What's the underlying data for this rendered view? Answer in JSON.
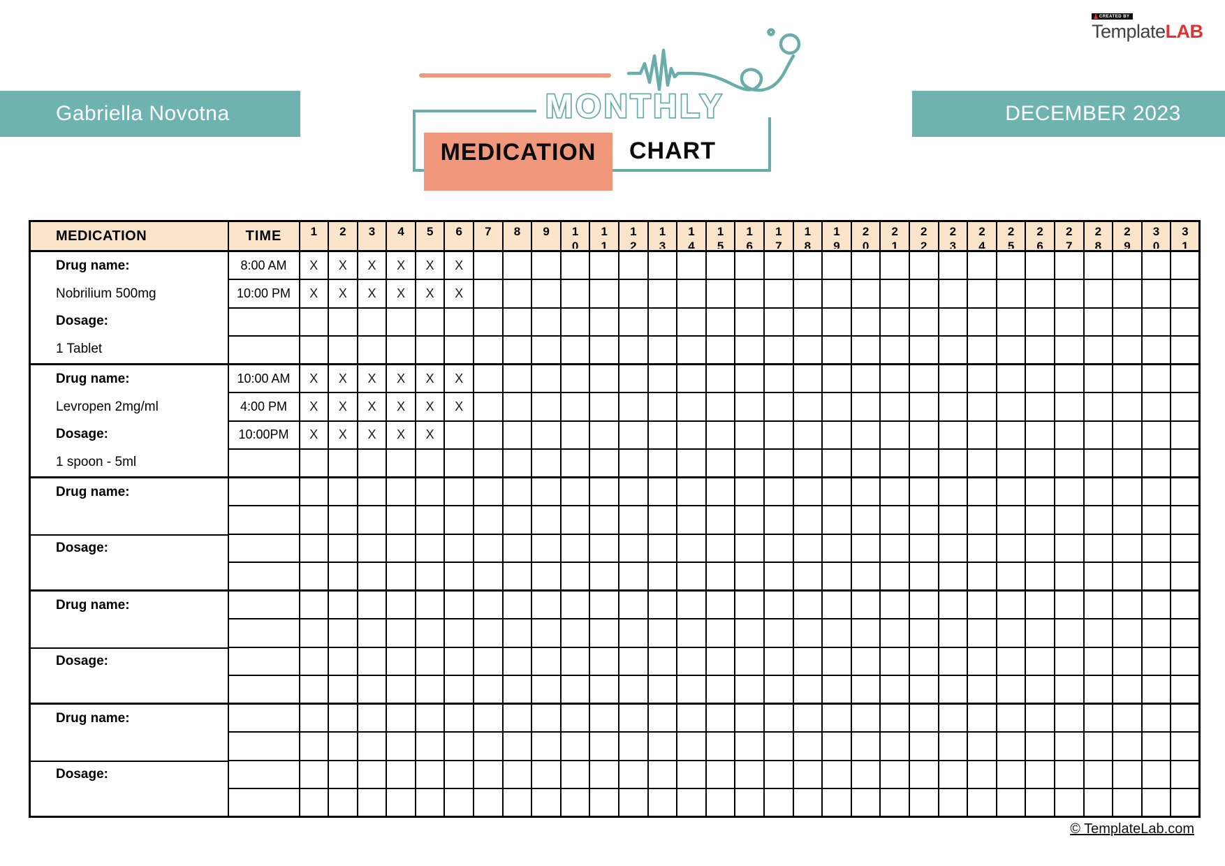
{
  "brand": {
    "created_by": "CREATED BY",
    "name_primary": "Template",
    "name_accent": "LAB"
  },
  "patient_banner": {
    "name": "Gabriella Novotna"
  },
  "month_banner": {
    "label": "DECEMBER 2023"
  },
  "logo": {
    "title": "MONTHLY",
    "subtitle_left": "MEDICATION",
    "subtitle_right": "CHART"
  },
  "table": {
    "medication_header": "MEDICATION",
    "time_header": "TIME",
    "days": [
      "1",
      "2",
      "3",
      "4",
      "5",
      "6",
      "7",
      "8",
      "9",
      "10",
      "11",
      "12",
      "13",
      "14",
      "15",
      "16",
      "17",
      "18",
      "19",
      "20",
      "21",
      "22",
      "23",
      "24",
      "25",
      "26",
      "27",
      "28",
      "29",
      "30",
      "31"
    ],
    "mark": "X",
    "groups": [
      {
        "mid_divider": false,
        "med_lines": [
          {
            "text": "Drug name:",
            "bold": true
          },
          {
            "text": "Nobrilium 500mg",
            "bold": false
          },
          {
            "text": "Dosage:",
            "bold": true
          },
          {
            "text": "1 Tablet",
            "bold": false
          }
        ],
        "time_rows": [
          {
            "time": "8:00 AM",
            "marked_days": [
              1,
              2,
              3,
              4,
              5,
              6
            ]
          },
          {
            "time": "10:00 PM",
            "marked_days": [
              1,
              2,
              3,
              4,
              5,
              6
            ]
          },
          {
            "time": "",
            "marked_days": []
          },
          {
            "time": "",
            "marked_days": []
          }
        ]
      },
      {
        "mid_divider": false,
        "med_lines": [
          {
            "text": "Drug name:",
            "bold": true
          },
          {
            "text": "Levropen 2mg/ml",
            "bold": false
          },
          {
            "text": "Dosage:",
            "bold": true
          },
          {
            "text": "1 spoon - 5ml",
            "bold": false
          }
        ],
        "time_rows": [
          {
            "time": "10:00 AM",
            "marked_days": [
              1,
              2,
              3,
              4,
              5,
              6
            ]
          },
          {
            "time": "4:00 PM",
            "marked_days": [
              1,
              2,
              3,
              4,
              5,
              6
            ]
          },
          {
            "time": "10:00PM",
            "marked_days": [
              1,
              2,
              3,
              4,
              5
            ]
          },
          {
            "time": "",
            "marked_days": []
          }
        ]
      },
      {
        "mid_divider": true,
        "med_lines": [
          {
            "text": "Drug name:",
            "bold": true
          },
          {
            "text": "",
            "bold": false
          },
          {
            "text": "Dosage:",
            "bold": true
          },
          {
            "text": "",
            "bold": false
          }
        ],
        "time_rows": [
          {
            "time": "",
            "marked_days": []
          },
          {
            "time": "",
            "marked_days": []
          },
          {
            "time": "",
            "marked_days": []
          },
          {
            "time": "",
            "marked_days": []
          }
        ]
      },
      {
        "mid_divider": true,
        "med_lines": [
          {
            "text": "Drug name:",
            "bold": true
          },
          {
            "text": "",
            "bold": false
          },
          {
            "text": "Dosage:",
            "bold": true
          },
          {
            "text": "",
            "bold": false
          }
        ],
        "time_rows": [
          {
            "time": "",
            "marked_days": []
          },
          {
            "time": "",
            "marked_days": []
          },
          {
            "time": "",
            "marked_days": []
          },
          {
            "time": "",
            "marked_days": []
          }
        ]
      },
      {
        "mid_divider": true,
        "med_lines": [
          {
            "text": "Drug name:",
            "bold": true
          },
          {
            "text": "",
            "bold": false
          },
          {
            "text": "Dosage:",
            "bold": true
          },
          {
            "text": "",
            "bold": false
          }
        ],
        "time_rows": [
          {
            "time": "",
            "marked_days": []
          },
          {
            "time": "",
            "marked_days": []
          },
          {
            "time": "",
            "marked_days": []
          },
          {
            "time": "",
            "marked_days": []
          }
        ]
      }
    ]
  },
  "footer": {
    "copyright": "© TemplateLab.com"
  },
  "colors": {
    "teal": "#6FB3B1",
    "logo_teal": "#69ADAB",
    "salmon": "#F0977C",
    "header_peach": "#FAE5CB",
    "brand_red": "#E23230",
    "brand_gray": "#414042"
  }
}
